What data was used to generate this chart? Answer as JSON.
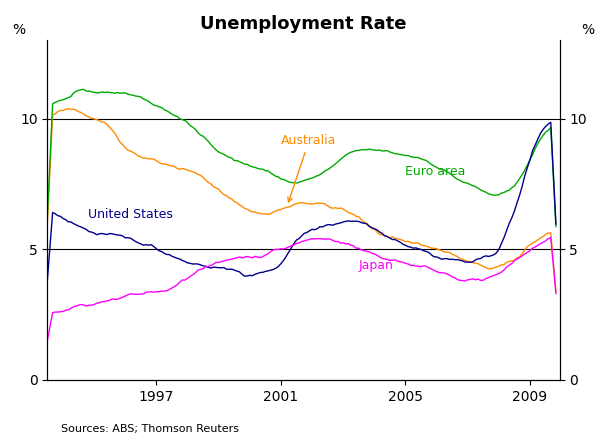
{
  "title": "Unemployment Rate",
  "ylabel_left": "%",
  "ylabel_right": "%",
  "source_text": "Sources: ABS; Thomson Reuters",
  "ylim": [
    0,
    13
  ],
  "yticks": [
    0,
    5,
    10
  ],
  "annotation_australia": "Australia",
  "annotation_euro": "Euro area",
  "annotation_us": "United States",
  "annotation_japan": "Japan",
  "color_australia": "#FF8C00",
  "color_euro": "#00AA00",
  "color_us": "#00008B",
  "color_japan": "#FF00FF",
  "hline_color": "#000000",
  "hline_y": [
    5,
    10
  ],
  "start_year": 1993.5,
  "end_year": 2009.95,
  "xtick_years": [
    1997,
    2001,
    2005,
    2009
  ],
  "figsize": [
    6.07,
    4.36
  ],
  "dpi": 100
}
